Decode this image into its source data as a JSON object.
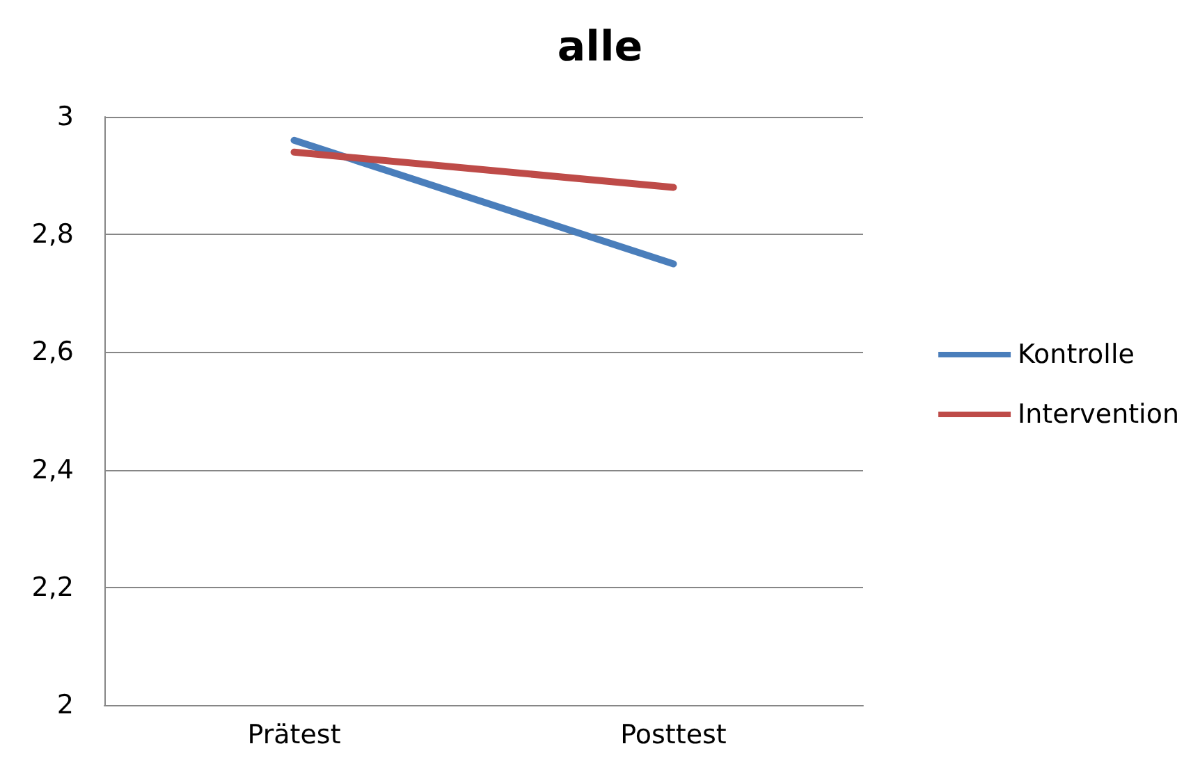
{
  "chart_data": {
    "type": "line",
    "title": "alle",
    "categories": [
      "Prätest",
      "Posttest"
    ],
    "series": [
      {
        "name": "Kontrolle",
        "color": "#4a7ebb",
        "values": [
          2.96,
          2.75
        ]
      },
      {
        "name": "Intervention",
        "color": "#be4b48",
        "values": [
          2.94,
          2.88
        ]
      }
    ],
    "ylim": [
      2,
      3
    ],
    "yticks": [
      {
        "value": 2,
        "label": "2"
      },
      {
        "value": 2.2,
        "label": "2,2"
      },
      {
        "value": 2.4,
        "label": "2,4"
      },
      {
        "value": 2.6,
        "label": "2,6"
      },
      {
        "value": 2.8,
        "label": "2,8"
      },
      {
        "value": 3,
        "label": "3"
      }
    ],
    "grid": "y",
    "legend": "right",
    "marker": "none",
    "line_style": "solid"
  }
}
